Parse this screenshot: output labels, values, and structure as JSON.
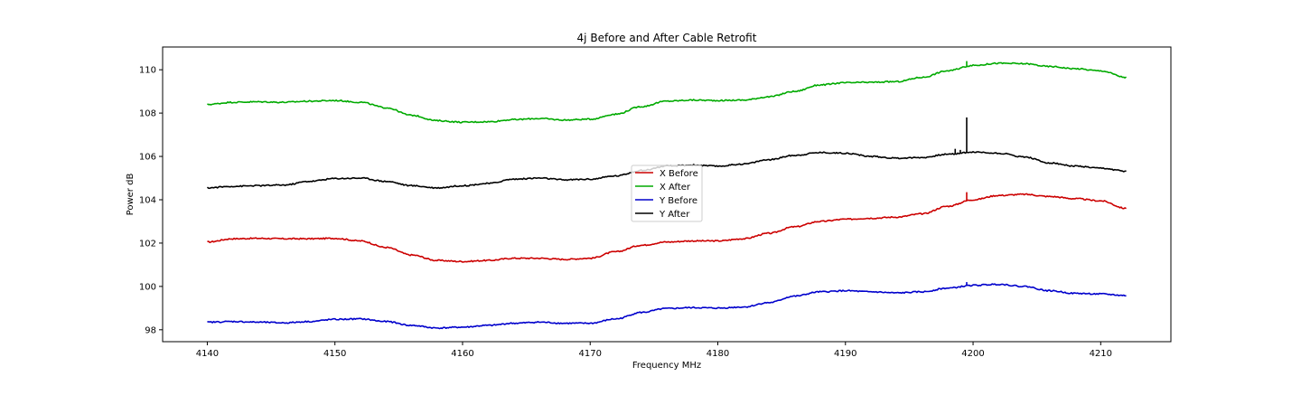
{
  "chart_data": {
    "type": "line",
    "title": "4j Before and After Cable Retrofit",
    "xlabel": "Frequency MHz",
    "ylabel": "Power dB",
    "xlim": [
      4136.5,
      4215.5
    ],
    "ylim": [
      97.45,
      111.05
    ],
    "xticks": [
      4140,
      4150,
      4160,
      4170,
      4180,
      4190,
      4200,
      4210
    ],
    "yticks": [
      98,
      100,
      102,
      104,
      106,
      108,
      110
    ],
    "grid": false,
    "legend_position": "center",
    "x": [
      4140,
      4142,
      4144,
      4146,
      4148,
      4150,
      4152,
      4154,
      4156,
      4158,
      4160,
      4162,
      4164,
      4166,
      4168,
      4170,
      4172,
      4174,
      4176,
      4178,
      4180,
      4182,
      4184,
      4186,
      4188,
      4190,
      4192,
      4194,
      4196,
      4198,
      4200,
      4202,
      4204,
      4206,
      4208,
      4210,
      4212
    ],
    "series": [
      {
        "name": "X Before",
        "color": "#cc0000",
        "values": [
          102.05,
          102.2,
          102.22,
          102.2,
          102.2,
          102.22,
          102.1,
          101.8,
          101.45,
          101.2,
          101.15,
          101.2,
          101.3,
          101.3,
          101.25,
          101.3,
          101.6,
          101.9,
          102.05,
          102.1,
          102.1,
          102.2,
          102.45,
          102.75,
          103.0,
          103.1,
          103.15,
          103.2,
          103.35,
          103.7,
          104.0,
          104.2,
          104.25,
          104.15,
          104.05,
          103.95,
          103.6
        ],
        "spikes": [
          {
            "x": 4199.5,
            "y": 104.35
          }
        ]
      },
      {
        "name": "X After",
        "color": "#00aa00",
        "values": [
          108.4,
          108.5,
          108.52,
          108.5,
          108.55,
          108.58,
          108.5,
          108.25,
          107.9,
          107.65,
          107.58,
          107.6,
          107.7,
          107.75,
          107.68,
          107.72,
          107.95,
          108.3,
          108.55,
          108.6,
          108.58,
          108.6,
          108.75,
          109.0,
          109.3,
          109.4,
          109.42,
          109.45,
          109.65,
          109.95,
          110.2,
          110.3,
          110.28,
          110.15,
          110.05,
          109.95,
          109.65
        ],
        "spikes": [
          {
            "x": 4199.5,
            "y": 110.4
          }
        ]
      },
      {
        "name": "Y Before",
        "color": "#0000cc",
        "values": [
          98.35,
          98.38,
          98.35,
          98.32,
          98.38,
          98.48,
          98.5,
          98.38,
          98.2,
          98.08,
          98.12,
          98.2,
          98.3,
          98.35,
          98.3,
          98.3,
          98.5,
          98.8,
          98.98,
          99.02,
          99.0,
          99.05,
          99.25,
          99.55,
          99.75,
          99.8,
          99.75,
          99.7,
          99.75,
          99.92,
          100.05,
          100.1,
          100.0,
          99.8,
          99.68,
          99.65,
          99.58
        ],
        "spikes": [
          {
            "x": 4199.5,
            "y": 100.2
          }
        ]
      },
      {
        "name": "Y After",
        "color": "#000000",
        "values": [
          104.55,
          104.62,
          104.65,
          104.68,
          104.85,
          104.98,
          105.0,
          104.85,
          104.65,
          104.55,
          104.65,
          104.75,
          104.95,
          105.0,
          104.92,
          104.95,
          105.1,
          105.35,
          105.55,
          105.6,
          105.55,
          105.65,
          105.85,
          106.05,
          106.18,
          106.15,
          106.0,
          105.92,
          105.95,
          106.1,
          106.2,
          106.15,
          105.98,
          105.7,
          105.55,
          105.45,
          105.32
        ],
        "spikes": [
          {
            "x": 4198.6,
            "y": 106.35
          },
          {
            "x": 4199.0,
            "y": 106.3
          },
          {
            "x": 4199.5,
            "y": 107.8
          }
        ]
      }
    ]
  }
}
